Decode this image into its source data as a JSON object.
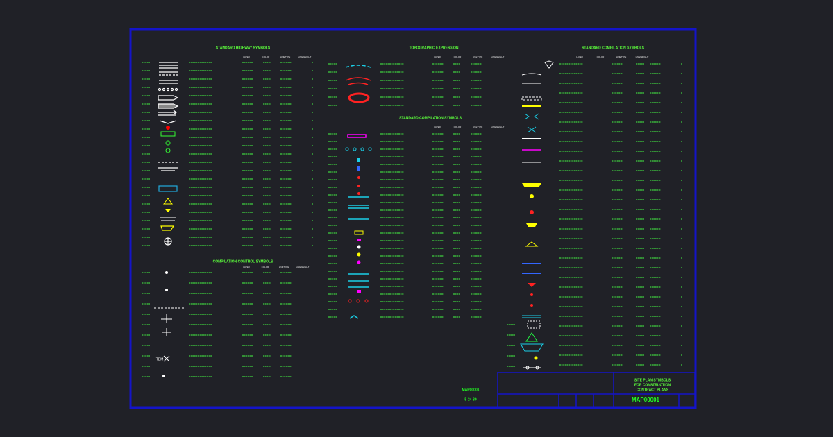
{
  "sections": [
    {
      "title": "STANDARD HIGHWAY SYMBOLS"
    },
    {
      "title": "TOPOGRAPHIC EXPRESSION"
    },
    {
      "title": "STANDARD COMPILATION SYMBOLS"
    },
    {
      "title": "COMPILATION CONTROL SYMBOLS"
    },
    {
      "title": "STANDARD COMPILATION SYMBOLS"
    }
  ],
  "headers": [
    "LAYER",
    "COLOR",
    "LINETYPE",
    "LINEWEIGHT"
  ],
  "tbm_label": "TBM",
  "sheet": {
    "number": "MAP00001",
    "date": "5-24-89"
  },
  "title_block": {
    "lines": [
      "SITE PLAN SYMBOLS",
      "FOR CONSTRUCTION",
      "CONTRACT PLANS"
    ],
    "number": "MAP00001"
  }
}
